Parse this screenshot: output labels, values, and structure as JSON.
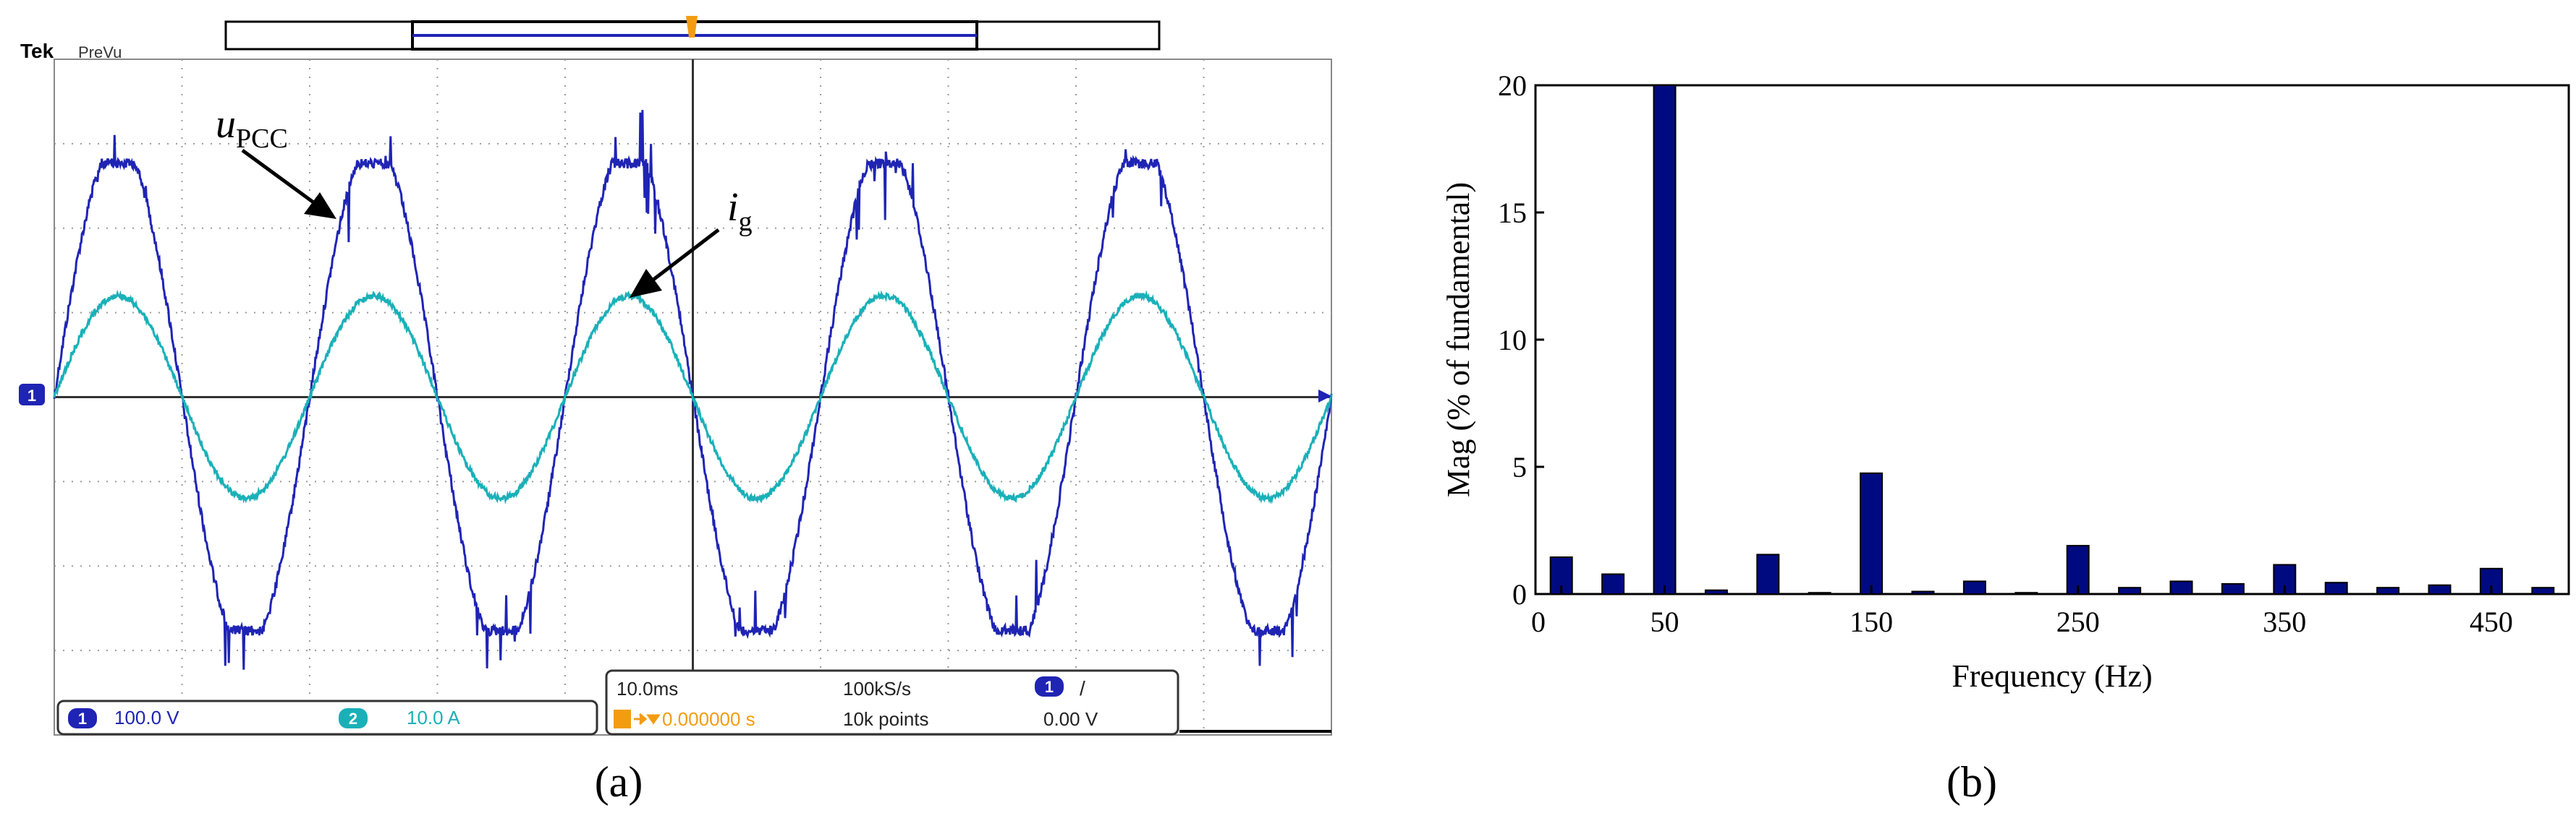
{
  "panel_a": {
    "brand": "Tek",
    "mode": "PreVu",
    "trigger_marker": "T",
    "ch1_marker": "1",
    "ch1_badge": "1",
    "ch1_scale": "100.0 V",
    "ch2_badge": "2",
    "ch2_scale": "10.0 A",
    "timebase": "10.0ms",
    "sample_rate": "100kS/s",
    "trigger_badge": "1",
    "trigger_slope": "/",
    "trigger_position": "0.000000 s",
    "record_length": "10k points",
    "trigger_level": "0.00 V",
    "label_u_main": "u",
    "label_u_sub": "PCC",
    "label_i_main": "i",
    "label_i_sub": "g",
    "caption": "(a)",
    "colors": {
      "voltage": "#1f24b4",
      "current": "#1ab0b8",
      "trigger": "#f39c12",
      "grid": "#9a9a9a"
    }
  },
  "panel_b": {
    "caption": "(b)"
  },
  "chart_data": [
    {
      "type": "line",
      "series": [
        {
          "name": "uPCC",
          "waveform": "sine",
          "frequency_hz": 50,
          "amplitude_div": 2.85,
          "color": "#1f24b4"
        },
        {
          "name": "ig",
          "waveform": "sine",
          "frequency_hz": 50,
          "amplitude_div": 1.2,
          "color": "#1ab0b8"
        }
      ],
      "x_div": 10,
      "y_div": 8,
      "time_per_div_ms": 10.0,
      "grid": true
    },
    {
      "type": "bar",
      "xlabel": "Frequency (Hz)",
      "ylabel": "Mag (% of fundamental)",
      "x": [
        0,
        25,
        50,
        75,
        100,
        125,
        150,
        175,
        200,
        225,
        250,
        275,
        300,
        325,
        350,
        375,
        400,
        425,
        450,
        475
      ],
      "values": [
        1.45,
        0.78,
        20.0,
        0.15,
        1.55,
        0.05,
        4.75,
        0.1,
        0.5,
        0.05,
        1.9,
        0.25,
        0.5,
        0.4,
        1.15,
        0.45,
        0.25,
        0.35,
        1.0,
        0.25
      ],
      "xticks": [
        0,
        50,
        150,
        250,
        350,
        450
      ],
      "yticks": [
        0,
        5,
        10,
        15,
        20
      ],
      "xlim": [
        0,
        500
      ],
      "ylim": [
        0,
        20
      ],
      "color": "#000a80",
      "grid": false
    }
  ]
}
